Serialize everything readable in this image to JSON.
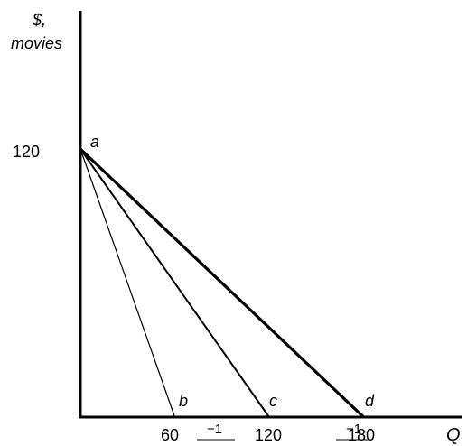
{
  "chart_data": {
    "type": "line",
    "ylabel_line1": "$,",
    "ylabel_line2": "movies",
    "xlabel": "Q",
    "x_tick_labels": [
      "60",
      "120",
      "180"
    ],
    "y_tick_labels": [
      "120"
    ],
    "xlim": [
      0,
      208
    ],
    "ylim": [
      0,
      172
    ],
    "point_labels": [
      {
        "name": "a",
        "x": 0,
        "y": 120
      },
      {
        "name": "b",
        "x": 60,
        "y": 0
      },
      {
        "name": "c",
        "x": 120,
        "y": 0
      },
      {
        "name": "d",
        "x": 180,
        "y": 0
      }
    ],
    "series": [
      {
        "from": [
          0,
          120
        ],
        "to": [
          60,
          0
        ],
        "weight": "thin"
      },
      {
        "from": [
          0,
          120
        ],
        "to": [
          120,
          0
        ],
        "weight": "medium"
      },
      {
        "from": [
          0,
          120
        ],
        "to": [
          180,
          0
        ],
        "weight": "thick"
      }
    ],
    "slope_labels": [
      "−1",
      "−1"
    ]
  }
}
